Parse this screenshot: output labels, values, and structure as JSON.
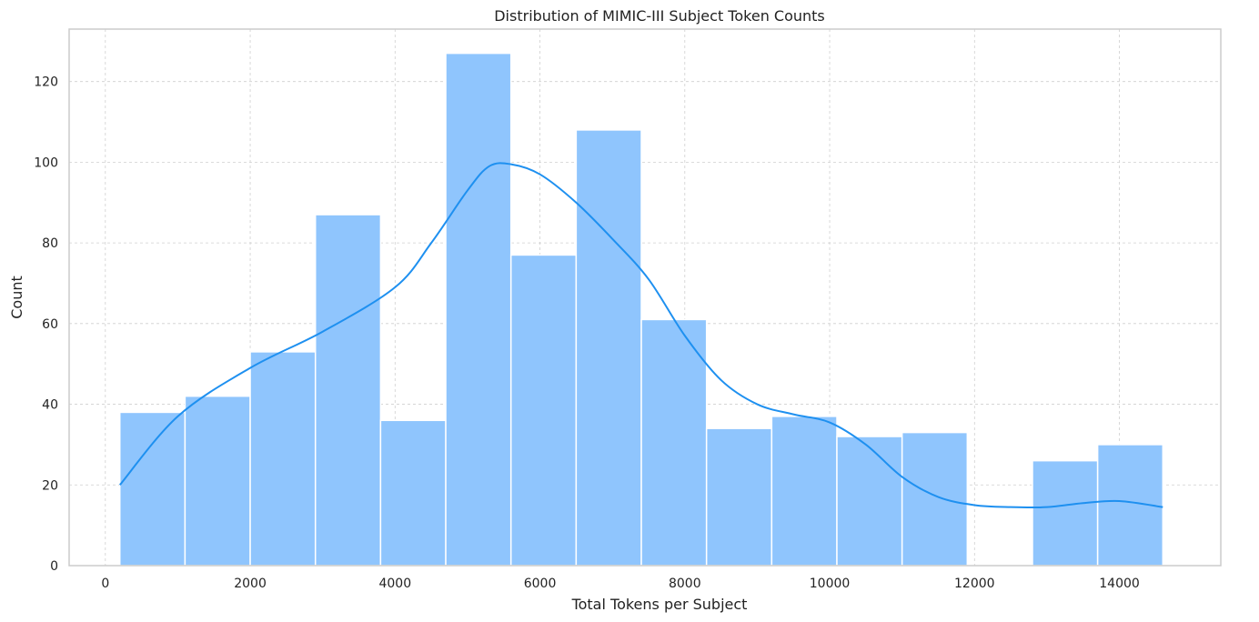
{
  "chart_data": {
    "type": "bar",
    "title": "Distribution of MIMIC-III Subject Token Counts",
    "xlabel": "Total Tokens per Subject",
    "ylabel": "Count",
    "xlim": [
      -500,
      15400
    ],
    "ylim": [
      0,
      133
    ],
    "xticks": [
      0,
      2000,
      4000,
      6000,
      8000,
      10000,
      12000,
      14000
    ],
    "yticks": [
      0,
      20,
      40,
      60,
      80,
      100,
      120
    ],
    "grid": true,
    "bins": [
      {
        "x0": 200,
        "x1": 1100,
        "count": 38
      },
      {
        "x0": 1100,
        "x1": 2000,
        "count": 42
      },
      {
        "x0": 2000,
        "x1": 2900,
        "count": 53
      },
      {
        "x0": 2900,
        "x1": 3800,
        "count": 87
      },
      {
        "x0": 3800,
        "x1": 4700,
        "count": 36
      },
      {
        "x0": 4700,
        "x1": 5600,
        "count": 127
      },
      {
        "x0": 5600,
        "x1": 6500,
        "count": 77
      },
      {
        "x0": 6500,
        "x1": 7400,
        "count": 108
      },
      {
        "x0": 7400,
        "x1": 8300,
        "count": 61
      },
      {
        "x0": 8300,
        "x1": 9200,
        "count": 34
      },
      {
        "x0": 9200,
        "x1": 10100,
        "count": 37
      },
      {
        "x0": 10100,
        "x1": 11000,
        "count": 32
      },
      {
        "x0": 11000,
        "x1": 11900,
        "count": 33
      },
      {
        "x0": 11900,
        "x1": 12800,
        "count": 0
      },
      {
        "x0": 12800,
        "x1": 13700,
        "count": 26
      },
      {
        "x0": 13700,
        "x1": 14600,
        "count": 30
      }
    ],
    "kde": {
      "x": [
        200,
        1000,
        2000,
        3000,
        4000,
        4500,
        5000,
        5300,
        5600,
        6000,
        6500,
        7000,
        7500,
        8000,
        8500,
        9000,
        9500,
        10000,
        10500,
        11000,
        11500,
        12000,
        12500,
        13000,
        13500,
        14000,
        14600
      ],
      "y": [
        20,
        37,
        49,
        58,
        69,
        80,
        93,
        99,
        99.5,
        97,
        90,
        81,
        71,
        57,
        46,
        40,
        37.5,
        35.5,
        30,
        22,
        17,
        15,
        14.5,
        14.5,
        15.5,
        16,
        14.5
      ]
    },
    "colors": {
      "bar_fill": "#8fc5fd",
      "bar_edge": "#ffffff",
      "kde_line": "#1e90f0",
      "grid": "#cfcfcf",
      "frame": "#cccccc"
    }
  }
}
